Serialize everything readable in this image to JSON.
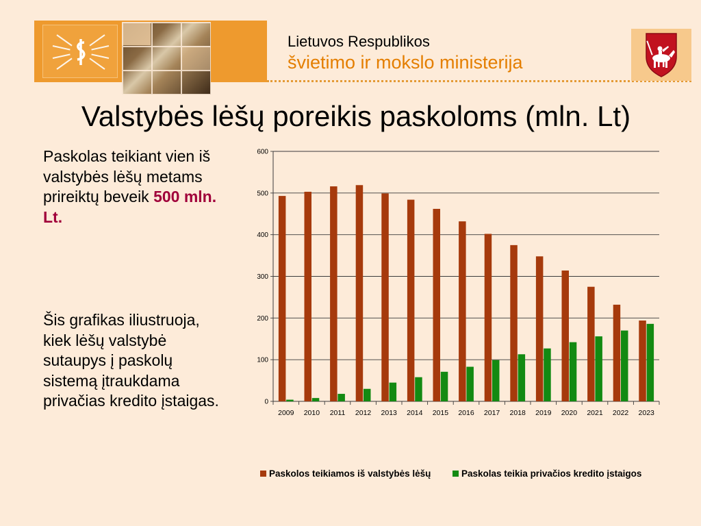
{
  "header": {
    "ministry_line1": "Lietuvos Respublikos",
    "ministry_line2": "švietimo ir mokslo ministerija",
    "logo_icon": "ministry-emblem-icon",
    "coat_of_arms_icon": "vytis-coat-of-arms-icon"
  },
  "title": "Valstybės lėšų poreikis paskoloms (mln. Lt)",
  "text": {
    "para1_main": "Paskolas teikiant vien iš valstybės lėšų metams prireiktų beveik ",
    "para1_highlight": "500 mln. Lt.",
    "para2": "Šis grafikas iliustruoja, kiek lėšų valstybė sutaupys į paskolų sistemą įtraukdama privačias kredito įstaigas."
  },
  "colors": {
    "background": "#fdebd9",
    "accent_orange": "#e47e00",
    "highlight": "#a0003a",
    "series_state": "#a63a0c",
    "series_private": "#138a12"
  },
  "chart_data": {
    "type": "bar",
    "categories": [
      "2009",
      "2010",
      "2011",
      "2012",
      "2013",
      "2014",
      "2015",
      "2016",
      "2017",
      "2018",
      "2019",
      "2020",
      "2021",
      "2022",
      "2023"
    ],
    "series": [
      {
        "name": "Paskolos teikiamos iš valstybės lėšų",
        "color": "#a63a0c",
        "values": [
          493,
          503,
          516,
          519,
          499,
          484,
          462,
          432,
          402,
          375,
          348,
          314,
          275,
          232,
          194
        ]
      },
      {
        "name": "Paskolas teikia privačios kredito įstaigos",
        "color": "#138a12",
        "values": [
          4,
          8,
          18,
          30,
          45,
          58,
          71,
          83,
          99,
          113,
          127,
          142,
          156,
          170,
          186
        ]
      }
    ],
    "yticks": [
      "0",
      "100",
      "200",
      "300",
      "400",
      "500",
      "600"
    ],
    "ylim": [
      0,
      600
    ],
    "grid": true,
    "legend": "bottom"
  }
}
